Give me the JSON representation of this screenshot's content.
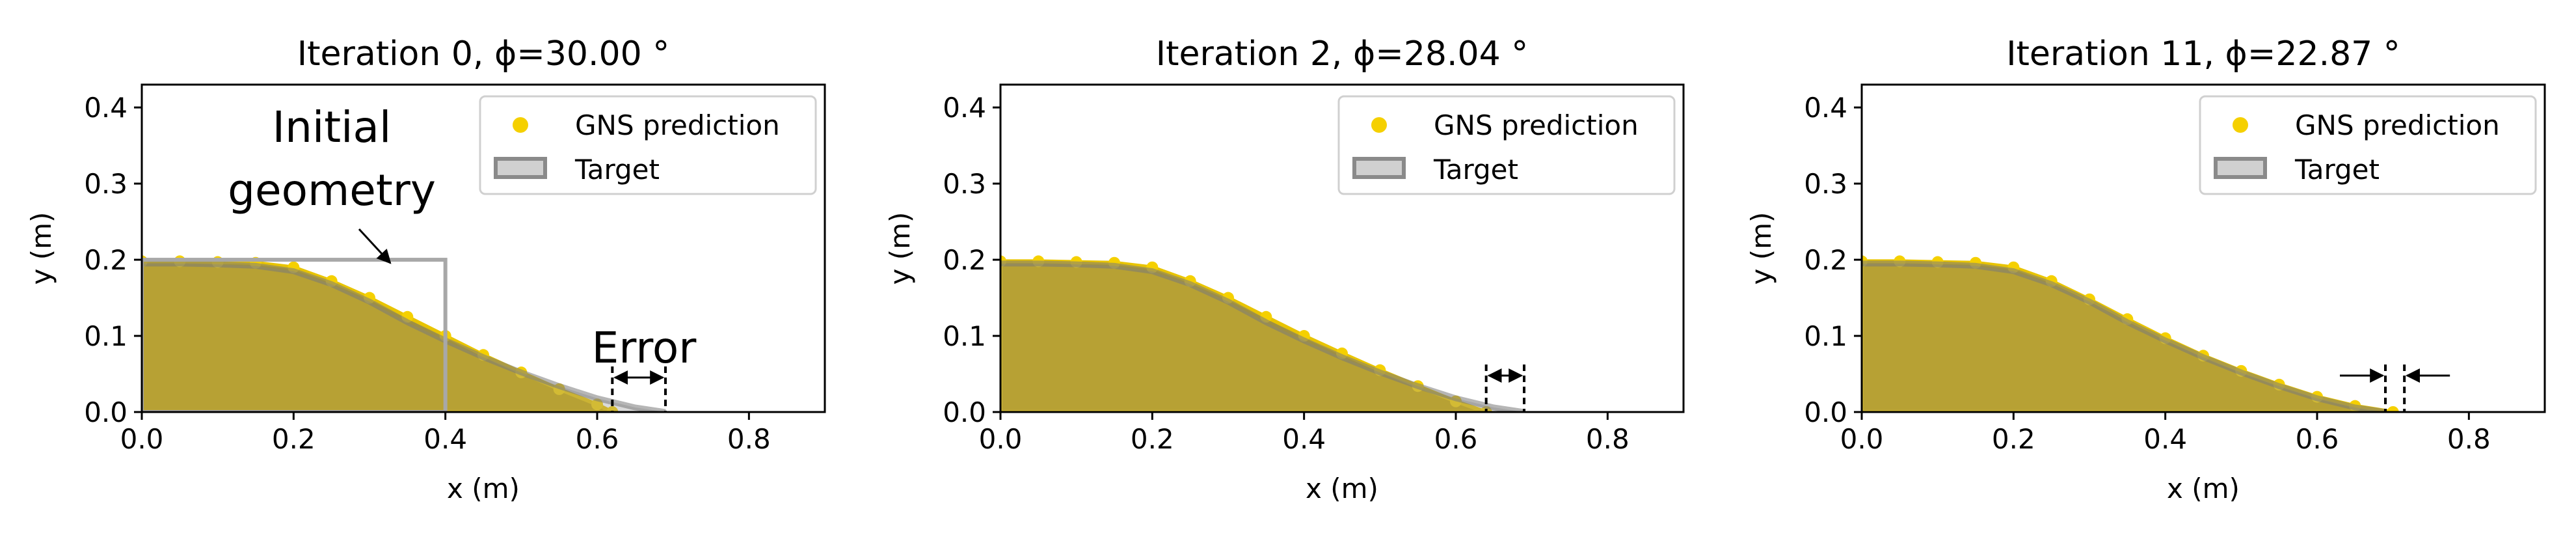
{
  "chart_data": [
    {
      "type": "area",
      "title": "Iteration 0, ϕ=30.00 °",
      "xlabel": "x (m)",
      "ylabel": "y (m)",
      "xlim": [
        0.0,
        0.9
      ],
      "ylim": [
        0.0,
        0.43
      ],
      "xticks": [
        "0.0",
        "0.2",
        "0.4",
        "0.6",
        "0.8"
      ],
      "yticks": [
        "0.0",
        "0.1",
        "0.2",
        "0.3",
        "0.4"
      ],
      "legend": {
        "placement": "top-right",
        "entries": [
          "GNS prediction",
          "Target"
        ]
      },
      "series": [
        {
          "name": "GNS prediction",
          "color": "#d4b400",
          "x": [
            0.0,
            0.05,
            0.1,
            0.15,
            0.2,
            0.25,
            0.3,
            0.35,
            0.4,
            0.45,
            0.5,
            0.55,
            0.6,
            0.62
          ],
          "y": [
            0.198,
            0.198,
            0.197,
            0.196,
            0.19,
            0.172,
            0.15,
            0.125,
            0.1,
            0.075,
            0.052,
            0.03,
            0.01,
            0.0
          ]
        },
        {
          "name": "Target",
          "color": "#9a9a9a",
          "x": [
            0.0,
            0.05,
            0.1,
            0.15,
            0.2,
            0.25,
            0.3,
            0.35,
            0.4,
            0.45,
            0.5,
            0.55,
            0.6,
            0.65,
            0.69
          ],
          "y": [
            0.195,
            0.195,
            0.194,
            0.192,
            0.185,
            0.168,
            0.145,
            0.118,
            0.094,
            0.072,
            0.052,
            0.034,
            0.018,
            0.006,
            0.0
          ]
        }
      ],
      "rectangle": {
        "x": [
          0.0,
          0.4
        ],
        "y": [
          0.0,
          0.2
        ]
      },
      "error_markers": [
        0.62,
        0.69
      ],
      "annotations": [
        "Initial",
        "geometry",
        "Error"
      ]
    },
    {
      "type": "area",
      "title": "Iteration 2, ϕ=28.04 °",
      "xlabel": "x (m)",
      "ylabel": "y (m)",
      "xlim": [
        0.0,
        0.9
      ],
      "ylim": [
        0.0,
        0.43
      ],
      "xticks": [
        "0.0",
        "0.2",
        "0.4",
        "0.6",
        "0.8"
      ],
      "yticks": [
        "0.0",
        "0.1",
        "0.2",
        "0.3",
        "0.4"
      ],
      "legend": {
        "placement": "top-right",
        "entries": [
          "GNS prediction",
          "Target"
        ]
      },
      "series": [
        {
          "name": "GNS prediction",
          "color": "#d4b400",
          "x": [
            0.0,
            0.05,
            0.1,
            0.15,
            0.2,
            0.25,
            0.3,
            0.35,
            0.4,
            0.45,
            0.5,
            0.55,
            0.6,
            0.64
          ],
          "y": [
            0.198,
            0.198,
            0.197,
            0.196,
            0.19,
            0.172,
            0.15,
            0.125,
            0.1,
            0.077,
            0.055,
            0.034,
            0.014,
            0.0
          ]
        },
        {
          "name": "Target",
          "color": "#9a9a9a",
          "x": [
            0.0,
            0.05,
            0.1,
            0.15,
            0.2,
            0.25,
            0.3,
            0.35,
            0.4,
            0.45,
            0.5,
            0.55,
            0.6,
            0.65,
            0.69
          ],
          "y": [
            0.195,
            0.195,
            0.194,
            0.192,
            0.185,
            0.168,
            0.145,
            0.118,
            0.094,
            0.072,
            0.052,
            0.034,
            0.018,
            0.006,
            0.0
          ]
        }
      ],
      "error_markers": [
        0.64,
        0.69
      ]
    },
    {
      "type": "area",
      "title": "Iteration 11, ϕ=22.87 °",
      "xlabel": "x (m)",
      "ylabel": "y (m)",
      "xlim": [
        0.0,
        0.9
      ],
      "ylim": [
        0.0,
        0.43
      ],
      "xticks": [
        "0.0",
        "0.2",
        "0.4",
        "0.6",
        "0.8"
      ],
      "yticks": [
        "0.0",
        "0.1",
        "0.2",
        "0.3",
        "0.4"
      ],
      "legend": {
        "placement": "top-right",
        "entries": [
          "GNS prediction",
          "Target"
        ]
      },
      "series": [
        {
          "name": "GNS prediction",
          "color": "#d4b400",
          "x": [
            0.0,
            0.05,
            0.1,
            0.15,
            0.2,
            0.25,
            0.3,
            0.35,
            0.4,
            0.45,
            0.5,
            0.55,
            0.6,
            0.65,
            0.7
          ],
          "y": [
            0.198,
            0.198,
            0.197,
            0.196,
            0.19,
            0.172,
            0.148,
            0.122,
            0.097,
            0.074,
            0.054,
            0.036,
            0.02,
            0.008,
            0.0
          ]
        },
        {
          "name": "Target",
          "color": "#9a9a9a",
          "x": [
            0.0,
            0.05,
            0.1,
            0.15,
            0.2,
            0.25,
            0.3,
            0.35,
            0.4,
            0.45,
            0.5,
            0.55,
            0.6,
            0.65,
            0.69
          ],
          "y": [
            0.195,
            0.195,
            0.194,
            0.192,
            0.185,
            0.168,
            0.145,
            0.118,
            0.094,
            0.072,
            0.052,
            0.034,
            0.018,
            0.006,
            0.0
          ]
        }
      ],
      "error_markers": [
        0.69,
        0.715
      ]
    }
  ]
}
